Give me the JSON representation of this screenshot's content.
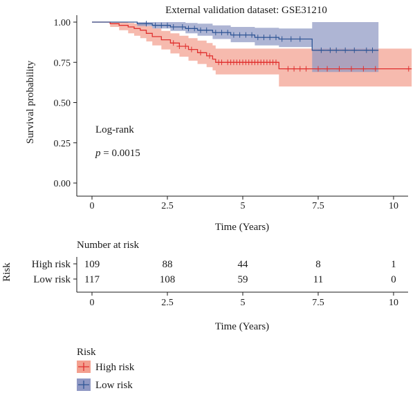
{
  "chart_data": {
    "type": "line",
    "subtype": "kaplan-meier",
    "title": "External validation dataset: GSE31210",
    "xlabel": "Time (Years)",
    "ylabel": "Survival probability",
    "xlim": [
      0,
      10.6
    ],
    "ylim": [
      0,
      1
    ],
    "x_ticks": [
      0,
      2.5,
      5,
      7.5,
      10
    ],
    "x_tick_labels": [
      "0",
      "2.5",
      "5",
      "7.5",
      "10"
    ],
    "y_ticks": [
      0,
      0.25,
      0.5,
      0.75,
      1
    ],
    "y_tick_labels": [
      "0.00",
      "0.25",
      "0.50",
      "0.75",
      "1.00"
    ],
    "grid": false,
    "annotations": {
      "test": "Log-rank",
      "p_symbol": "p",
      "p_text": " = 0.0015"
    },
    "series": [
      {
        "name": "High risk",
        "color": "#e0302f",
        "band_color": "#f3a08f",
        "steps": [
          [
            0,
            1
          ],
          [
            0.6,
            0.99
          ],
          [
            0.9,
            0.98
          ],
          [
            1.2,
            0.97
          ],
          [
            1.4,
            0.96
          ],
          [
            1.6,
            0.95
          ],
          [
            1.8,
            0.93
          ],
          [
            2.0,
            0.91
          ],
          [
            2.3,
            0.89
          ],
          [
            2.6,
            0.87
          ],
          [
            2.9,
            0.85
          ],
          [
            3.2,
            0.83
          ],
          [
            3.5,
            0.81
          ],
          [
            3.8,
            0.79
          ],
          [
            4.0,
            0.77
          ],
          [
            4.1,
            0.75
          ],
          [
            6.2,
            0.71
          ],
          [
            10.6,
            0.71
          ]
        ],
        "upper": [
          [
            0,
            1
          ],
          [
            0.6,
            1
          ],
          [
            0.9,
            1
          ],
          [
            1.2,
            0.995
          ],
          [
            1.4,
            0.99
          ],
          [
            1.6,
            0.985
          ],
          [
            1.8,
            0.975
          ],
          [
            2.0,
            0.96
          ],
          [
            2.3,
            0.945
          ],
          [
            2.6,
            0.93
          ],
          [
            2.9,
            0.915
          ],
          [
            3.2,
            0.9
          ],
          [
            3.5,
            0.885
          ],
          [
            3.8,
            0.87
          ],
          [
            4.0,
            0.855
          ],
          [
            4.1,
            0.835
          ],
          [
            6.2,
            0.835
          ],
          [
            10.6,
            0.835
          ]
        ],
        "lower": [
          [
            0,
            1
          ],
          [
            0.6,
            0.97
          ],
          [
            0.9,
            0.95
          ],
          [
            1.2,
            0.93
          ],
          [
            1.4,
            0.915
          ],
          [
            1.6,
            0.9
          ],
          [
            1.8,
            0.88
          ],
          [
            2.0,
            0.855
          ],
          [
            2.3,
            0.83
          ],
          [
            2.6,
            0.805
          ],
          [
            2.9,
            0.785
          ],
          [
            3.2,
            0.76
          ],
          [
            3.5,
            0.74
          ],
          [
            3.8,
            0.72
          ],
          [
            4.0,
            0.7
          ],
          [
            4.1,
            0.675
          ],
          [
            6.2,
            0.6
          ],
          [
            10.6,
            0.6
          ]
        ],
        "censor_times": [
          2.7,
          2.9,
          3.1,
          3.3,
          3.6,
          3.9,
          4.2,
          4.3,
          4.5,
          4.6,
          4.7,
          4.8,
          4.9,
          5.0,
          5.1,
          5.2,
          5.3,
          5.4,
          5.5,
          5.6,
          5.7,
          5.8,
          5.9,
          6.0,
          6.1,
          6.5,
          6.7,
          6.9,
          7.1,
          7.5,
          7.8,
          8.2,
          8.6,
          9.0,
          9.4,
          10.5
        ]
      },
      {
        "name": "Low risk",
        "color": "#2f5595",
        "band_color": "#8f98c4",
        "steps": [
          [
            0,
            1
          ],
          [
            1.5,
            0.99
          ],
          [
            2.0,
            0.98
          ],
          [
            2.6,
            0.97
          ],
          [
            3.1,
            0.96
          ],
          [
            3.5,
            0.95
          ],
          [
            4.0,
            0.935
          ],
          [
            4.6,
            0.92
          ],
          [
            5.4,
            0.905
          ],
          [
            6.2,
            0.895
          ],
          [
            7.3,
            0.825
          ],
          [
            9.5,
            0.825
          ]
        ],
        "upper": [
          [
            0,
            1
          ],
          [
            1.5,
            1
          ],
          [
            2.0,
            1
          ],
          [
            2.6,
            1
          ],
          [
            3.1,
            0.995
          ],
          [
            3.5,
            0.99
          ],
          [
            4.0,
            0.98
          ],
          [
            4.6,
            0.97
          ],
          [
            5.4,
            0.965
          ],
          [
            6.2,
            0.96
          ],
          [
            7.3,
            1
          ],
          [
            9.5,
            1
          ]
        ],
        "lower": [
          [
            0,
            1
          ],
          [
            1.5,
            0.975
          ],
          [
            2.0,
            0.96
          ],
          [
            2.6,
            0.945
          ],
          [
            3.1,
            0.93
          ],
          [
            3.5,
            0.915
          ],
          [
            4.0,
            0.895
          ],
          [
            4.6,
            0.875
          ],
          [
            5.4,
            0.855
          ],
          [
            6.2,
            0.845
          ],
          [
            7.3,
            0.69
          ],
          [
            9.5,
            0.69
          ]
        ],
        "censor_times": [
          1.8,
          2.1,
          2.3,
          2.5,
          2.7,
          3.0,
          3.2,
          3.4,
          3.6,
          3.8,
          4.1,
          4.3,
          4.5,
          4.7,
          4.9,
          5.1,
          5.3,
          5.5,
          5.7,
          5.9,
          6.1,
          6.3,
          6.6,
          6.9,
          7.6,
          7.9,
          8.1,
          8.4,
          8.7,
          9.1,
          9.3
        ]
      }
    ],
    "risk_table": {
      "title": "Number at risk",
      "ylabel": "Risk",
      "xlabel": "Time (Years)",
      "times": [
        0,
        2.5,
        5,
        7.5,
        10
      ],
      "rows": [
        {
          "label": "High risk",
          "values": [
            "109",
            "88",
            "44",
            "8",
            "1"
          ]
        },
        {
          "label": "Low risk",
          "values": [
            "117",
            "108",
            "59",
            "11",
            "0"
          ]
        }
      ]
    },
    "legend": {
      "title": "Risk",
      "placement": "bottom-left",
      "items": [
        {
          "label": "High risk",
          "color": "#e0302f",
          "fill": "#f3a08f"
        },
        {
          "label": "Low risk",
          "color": "#2f5595",
          "fill": "#8f98c4"
        }
      ]
    }
  }
}
